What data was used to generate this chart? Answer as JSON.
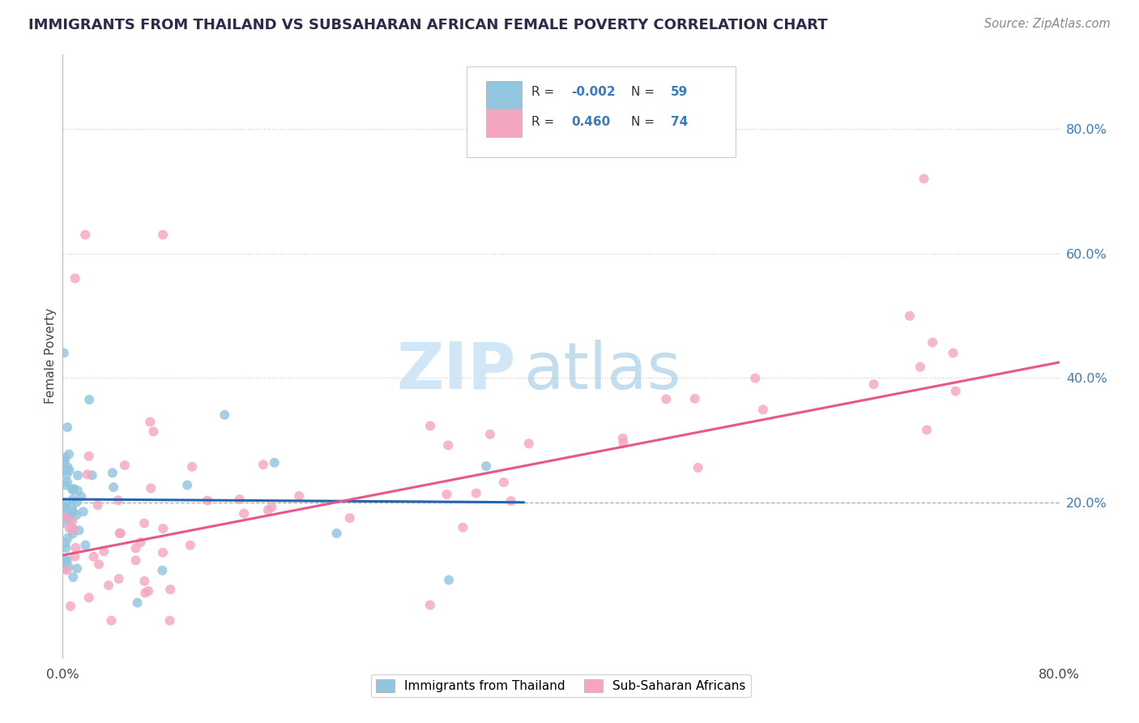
{
  "title": "IMMIGRANTS FROM THAILAND VS SUBSAHARAN AFRICAN FEMALE POVERTY CORRELATION CHART",
  "source": "Source: ZipAtlas.com",
  "ylabel": "Female Poverty",
  "xlim": [
    0.0,
    0.8
  ],
  "ylim": [
    -0.05,
    0.92
  ],
  "yticks": [
    0.0,
    0.2,
    0.4,
    0.6,
    0.8
  ],
  "ytick_labels": [
    "",
    "20.0%",
    "40.0%",
    "60.0%",
    "80.0%"
  ],
  "hlines_dotted": [
    0.4,
    0.6,
    0.8
  ],
  "hline_dashed": 0.2,
  "r_blue": -0.002,
  "n_blue": 59,
  "r_pink": 0.46,
  "n_pink": 74,
  "blue_color": "#92c5de",
  "pink_color": "#f4a6c0",
  "blue_line_color": "#2565ae",
  "pink_line_color": "#e8578a",
  "axis_label_color": "#3a7bbf",
  "title_color": "#2b2b4b",
  "watermark_zip_color": "#cce4f5",
  "watermark_atlas_color": "#a8cfe8",
  "blue_line_y0": 0.205,
  "blue_line_y1": 0.2,
  "blue_line_x0": 0.0,
  "blue_line_x1": 0.37,
  "pink_line_y0": 0.115,
  "pink_line_y1": 0.425,
  "pink_line_x0": 0.0,
  "pink_line_x1": 0.8
}
